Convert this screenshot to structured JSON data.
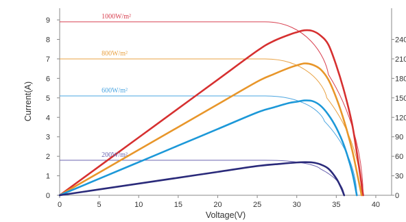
{
  "chart_data": {
    "type": "line",
    "title": "",
    "xlabel": "Voltage(V)",
    "ylabel_left": "Current(A)",
    "ylabel_right": "",
    "xlim": [
      0,
      42
    ],
    "ylim_left": [
      0,
      9.6
    ],
    "ylim_right": [
      0,
      288
    ],
    "x_ticks": [
      "0",
      "5",
      "10",
      "15",
      "20",
      "25",
      "30",
      "35",
      "40"
    ],
    "y_ticks_left": [
      "0",
      "1",
      "2",
      "3",
      "4",
      "5",
      "6",
      "7",
      "8",
      "9"
    ],
    "y_ticks_right": [
      "0",
      "30",
      "60",
      "90",
      "120",
      "150",
      "180",
      "210",
      "240"
    ],
    "grid": false,
    "series": [
      {
        "name": "1000W/m²",
        "color": "#d84050",
        "iv": {
          "isc": 8.9,
          "voc": 38.4,
          "flat_to": 26.0,
          "knee_to": 34.0,
          "i_at_knee": 6.2
        },
        "pv": [
          [
            0,
            0
          ],
          [
            5,
            44.5
          ],
          [
            10,
            89
          ],
          [
            15,
            133.5
          ],
          [
            20,
            178
          ],
          [
            25,
            222.5
          ],
          [
            27,
            237
          ],
          [
            29,
            247
          ],
          [
            30,
            251
          ],
          [
            31,
            254
          ],
          [
            32,
            253
          ],
          [
            33,
            246
          ],
          [
            34,
            232
          ],
          [
            35,
            200
          ],
          [
            36,
            160
          ],
          [
            37,
            110
          ],
          [
            37.8,
            50
          ],
          [
            38.4,
            0
          ]
        ]
      },
      {
        "name": "800W/m²",
        "color": "#e8a040",
        "iv": {
          "isc": 7.0,
          "voc": 38.2,
          "flat_to": 26.0,
          "knee_to": 33.8,
          "i_at_knee": 5.0
        },
        "pv": [
          [
            0,
            0
          ],
          [
            5,
            35
          ],
          [
            10,
            70
          ],
          [
            15,
            105
          ],
          [
            20,
            140
          ],
          [
            25,
            175
          ],
          [
            27,
            186
          ],
          [
            29,
            196
          ],
          [
            30,
            200
          ],
          [
            31,
            203
          ],
          [
            32,
            201
          ],
          [
            33,
            194
          ],
          [
            34,
            178
          ],
          [
            35,
            150
          ],
          [
            36,
            114
          ],
          [
            37,
            70
          ],
          [
            37.7,
            30
          ],
          [
            38.2,
            0
          ]
        ]
      },
      {
        "name": "600W/m²",
        "color": "#4aa4e0",
        "iv": {
          "isc": 5.1,
          "voc": 37.6,
          "flat_to": 26.0,
          "knee_to": 33.5,
          "i_at_knee": 3.8
        },
        "pv": [
          [
            0,
            0
          ],
          [
            5,
            25.5
          ],
          [
            10,
            51
          ],
          [
            15,
            76.5
          ],
          [
            20,
            102
          ],
          [
            25,
            127.5
          ],
          [
            27,
            135
          ],
          [
            29,
            142
          ],
          [
            30,
            144
          ],
          [
            31,
            146
          ],
          [
            32,
            145
          ],
          [
            33,
            138
          ],
          [
            34,
            124
          ],
          [
            35,
            104
          ],
          [
            36,
            76
          ],
          [
            37,
            36
          ],
          [
            37.6,
            0
          ]
        ]
      },
      {
        "name": "200W/m²",
        "color": "#6a64b0",
        "iv": {
          "isc": 1.8,
          "voc": 36.0,
          "flat_to": 26.0,
          "knee_to": 33.0,
          "i_at_knee": 1.35
        },
        "pv": [
          [
            0,
            0
          ],
          [
            5,
            9
          ],
          [
            10,
            18
          ],
          [
            15,
            27
          ],
          [
            20,
            36
          ],
          [
            25,
            45
          ],
          [
            28,
            48.5
          ],
          [
            30,
            50.5
          ],
          [
            31,
            51
          ],
          [
            32,
            50.5
          ],
          [
            33,
            47.5
          ],
          [
            34,
            41
          ],
          [
            35,
            26
          ],
          [
            35.6,
            12
          ],
          [
            36,
            0
          ]
        ]
      }
    ]
  },
  "power_colors": [
    "#d63030",
    "#e8962a",
    "#1c98d8",
    "#2a2a7a"
  ]
}
